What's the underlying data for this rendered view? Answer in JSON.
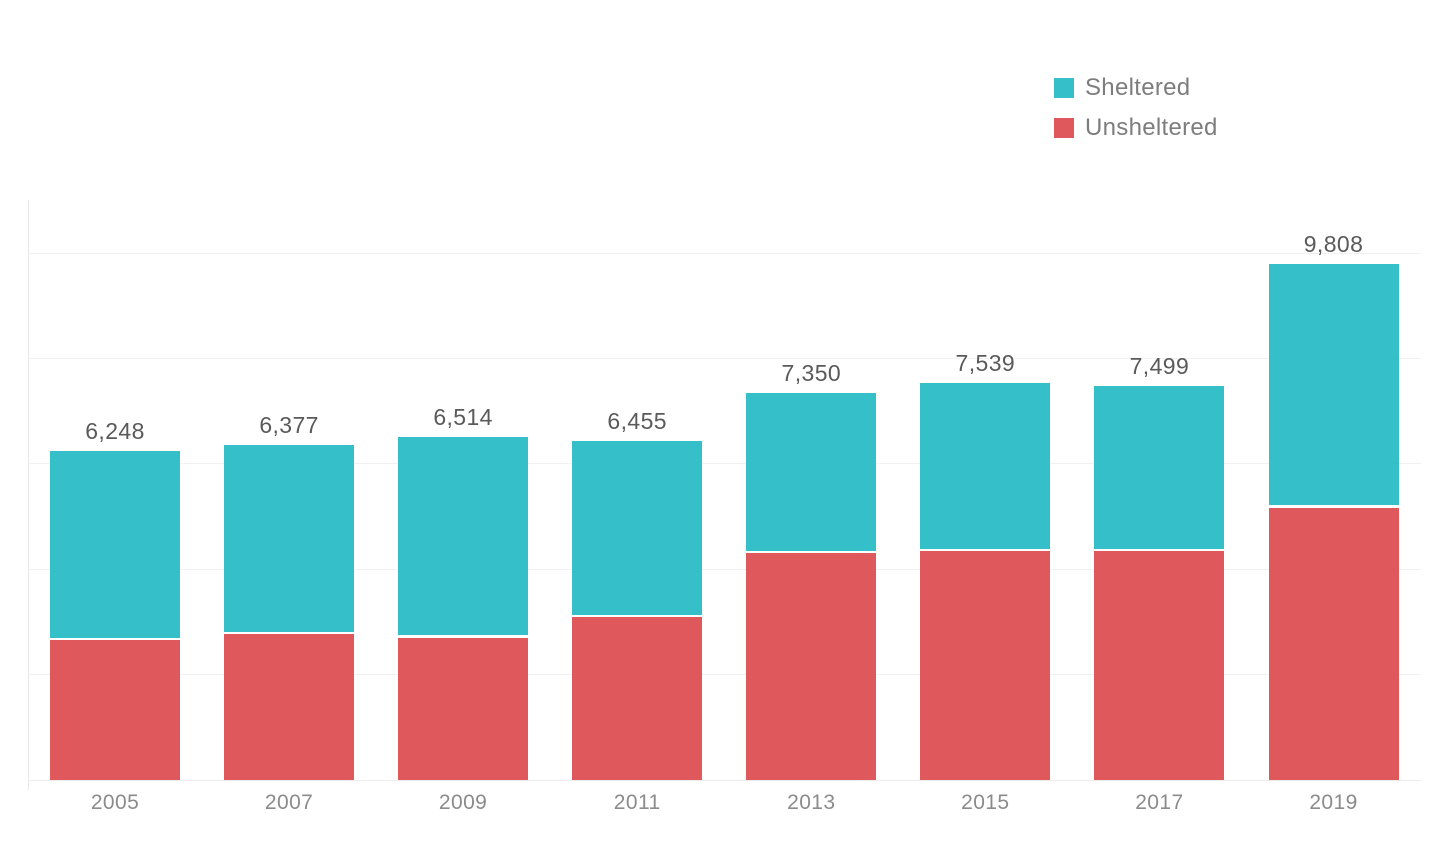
{
  "legend": {
    "position": "top-right",
    "items": [
      {
        "label": "Sheltered",
        "color": "#35BFC9"
      },
      {
        "label": "Unsheltered",
        "color": "#DF595C"
      }
    ]
  },
  "chart_data": {
    "type": "bar",
    "stacked": true,
    "categories": [
      "2005",
      "2007",
      "2009",
      "2011",
      "2013",
      "2015",
      "2017",
      "2019"
    ],
    "series": [
      {
        "name": "Unsheltered",
        "color": "#DF595C",
        "values": [
          2655,
          2771,
          2709,
          3106,
          4315,
          4358,
          4353,
          5180
        ]
      },
      {
        "name": "Sheltered",
        "color": "#35BFC9",
        "values": [
          3593,
          3606,
          3805,
          3349,
          3035,
          3181,
          3146,
          4628
        ]
      }
    ],
    "totals": [
      6248,
      6377,
      6514,
      6455,
      7350,
      7539,
      7499,
      9808
    ],
    "total_labels": [
      "6,248",
      "6,377",
      "6,514",
      "6,455",
      "7,350",
      "7,539",
      "7,499",
      "9,808"
    ],
    "ylim": [
      0,
      11000
    ],
    "grid_interval": 2000,
    "grid": true,
    "y_tick_labels_shown": false,
    "legend_position": "top-right",
    "colors": {
      "grid_line": "#f1f1f1",
      "axis_line": "#e7e7e7",
      "total_label_text": "#5a5a5a",
      "axis_label_text": "#8b8b8b",
      "legend_text": "#7d7d7d",
      "background": "#ffffff"
    }
  }
}
